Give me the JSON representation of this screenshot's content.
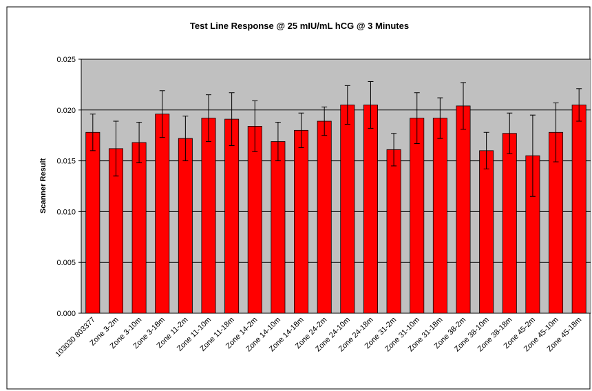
{
  "chart_data": {
    "type": "bar",
    "title": "Test Line Response @ 25 mIU/mL hCG @ 3 Minutes",
    "y_label": "Scanner Result",
    "categories": [
      "103030 803377",
      "Zone 3-2m",
      "Zone 3-10m",
      "Zone 3-18m",
      "Zone 11-2m",
      "Zone 11-10m",
      "Zone 11-18m",
      "Zone 14-2m",
      "Zone 14-10m",
      "Zone 14-18m",
      "Zone 24-2m",
      "Zone 24-10m",
      "Zone 24-18m",
      "Zone 31-2m",
      "Zone 31-10m",
      "Zone 31-18m",
      "Zone 38-2m",
      "Zone 38-10m",
      "Zone 38-18m",
      "Zone 45-2m",
      "Zone 45-10m",
      "Zone 45-18m"
    ],
    "values": [
      0.0178,
      0.0162,
      0.0168,
      0.0196,
      0.0172,
      0.0192,
      0.0191,
      0.0184,
      0.0169,
      0.018,
      0.0189,
      0.0205,
      0.0205,
      0.0161,
      0.0192,
      0.0192,
      0.0204,
      0.016,
      0.0177,
      0.0155,
      0.0178,
      0.0205
    ],
    "errors": [
      0.0018,
      0.0027,
      0.002,
      0.0023,
      0.0022,
      0.0023,
      0.0026,
      0.0025,
      0.0019,
      0.0017,
      0.0014,
      0.0019,
      0.0023,
      0.0016,
      0.0025,
      0.002,
      0.0023,
      0.0018,
      0.002,
      0.004,
      0.0029,
      0.0016
    ],
    "color": "#ff0000",
    "ylim": [
      0,
      0.025
    ],
    "yticks": [
      {
        "value": 0,
        "label": "0.000"
      },
      0.005,
      {
        "value": 0.01,
        "label": "0.010"
      },
      0.015,
      {
        "value": 0.02,
        "label": "0.020"
      },
      0.025
    ],
    "grid": true
  }
}
